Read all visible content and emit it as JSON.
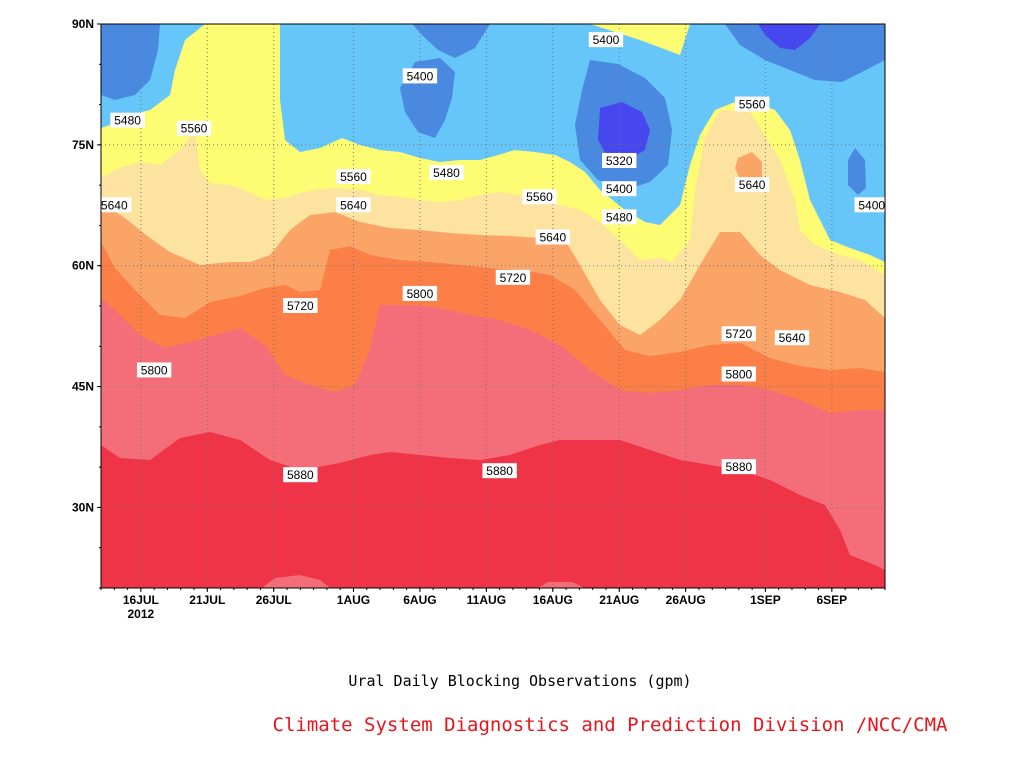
{
  "chart_data": {
    "type": "heatmap",
    "title": "Ural Daily Blocking Observations (gpm)",
    "credit": "Climate System Diagnostics and Prediction Division /NCC/CMA",
    "xlabel": "",
    "ylabel": "",
    "x_ticks": [
      "16JUL",
      "21JUL",
      "26JUL",
      "1AUG",
      "6AUG",
      "11AUG",
      "16AUG",
      "21AUG",
      "26AUG",
      "1SEP",
      "6SEP"
    ],
    "x_tick_year": "2012",
    "x_range": [
      "2012-07-13",
      "2012-09-10"
    ],
    "y_ticks": [
      "30N",
      "45N",
      "60N",
      "75N",
      "90N"
    ],
    "y_range": [
      20,
      90
    ],
    "contour_levels": [
      5320,
      5400,
      5480,
      5560,
      5640,
      5720,
      5800,
      5880
    ],
    "fill_colors": [
      "#f03448",
      "#f46e7a",
      "#fb7f47",
      "#fba468",
      "#fde3a0",
      "#fdfc72",
      "#66c6fa",
      "#4a89e0",
      "#4747f0"
    ],
    "contour_labels": [
      {
        "text": "5480",
        "date": "2012-07-15",
        "lat": 78
      },
      {
        "text": "5560",
        "date": "2012-07-20",
        "lat": 77
      },
      {
        "text": "5640",
        "date": "2012-07-14",
        "lat": 67.5
      },
      {
        "text": "5400",
        "date": "2012-08-06",
        "lat": 83.5
      },
      {
        "text": "5400",
        "date": "2012-08-20",
        "lat": 88
      },
      {
        "text": "5560",
        "date": "2012-08-01",
        "lat": 71
      },
      {
        "text": "5480",
        "date": "2012-08-08",
        "lat": 71.5
      },
      {
        "text": "5640",
        "date": "2012-08-01",
        "lat": 67.5
      },
      {
        "text": "5320",
        "date": "2012-08-21",
        "lat": 73
      },
      {
        "text": "5400",
        "date": "2012-08-21",
        "lat": 69.5
      },
      {
        "text": "5480",
        "date": "2012-08-21",
        "lat": 66
      },
      {
        "text": "5560",
        "date": "2012-08-15",
        "lat": 68.5
      },
      {
        "text": "5640",
        "date": "2012-08-16",
        "lat": 63.5
      },
      {
        "text": "5560",
        "date": "2012-08-31",
        "lat": 80
      },
      {
        "text": "5640",
        "date": "2012-08-31",
        "lat": 70
      },
      {
        "text": "5400",
        "date": "2012-09-09",
        "lat": 67.5
      },
      {
        "text": "5720",
        "date": "2012-07-28",
        "lat": 55
      },
      {
        "text": "5800",
        "date": "2012-08-06",
        "lat": 56.5
      },
      {
        "text": "5720",
        "date": "2012-08-13",
        "lat": 58.5
      },
      {
        "text": "5720",
        "date": "2012-08-30",
        "lat": 51.5
      },
      {
        "text": "5640",
        "date": "2012-09-03",
        "lat": 51
      },
      {
        "text": "5800",
        "date": "2012-07-17",
        "lat": 47
      },
      {
        "text": "5800",
        "date": "2012-08-30",
        "lat": 46.5
      },
      {
        "text": "5880",
        "date": "2012-07-28",
        "lat": 34
      },
      {
        "text": "5880",
        "date": "2012-08-12",
        "lat": 34.5
      },
      {
        "text": "5880",
        "date": "2012-08-30",
        "lat": 35
      }
    ],
    "grid": true,
    "grid_style": "dotted",
    "legend": "none"
  }
}
